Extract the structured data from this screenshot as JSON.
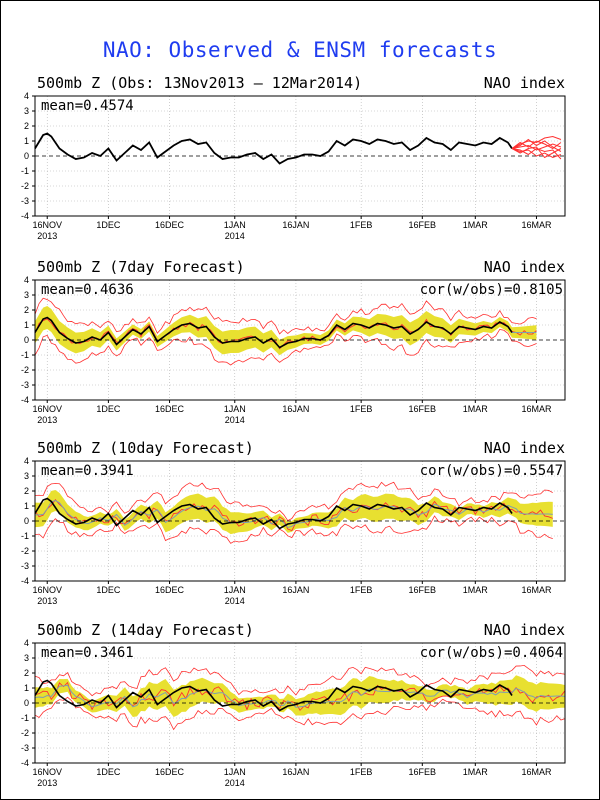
{
  "title": "NAO: Observed & ENSM forecasts",
  "colors": {
    "title": "#1f3cf0",
    "observed": "#000000",
    "ensemble": "#ff3030",
    "spread": "#e8e030",
    "mean_line": "#7f9fb0",
    "grid": "#b0b0b0"
  },
  "chart_data": [
    {
      "type": "line",
      "title_left": "500mb Z (Obs: 13Nov2013 – 12Mar2014)",
      "title_right": "NAO index",
      "mean_label": "mean=0.4574",
      "cor_label": "",
      "ylim": [
        -4,
        4
      ],
      "yticks": [
        "4",
        "3",
        "2",
        "1",
        "0",
        "-1",
        "-2",
        "-3",
        "-4"
      ],
      "xlim": [
        0,
        130
      ],
      "xticks": [
        {
          "day": 3,
          "label": "16NOV",
          "year": "2013"
        },
        {
          "day": 18,
          "label": "1DEC",
          "year": ""
        },
        {
          "day": 33,
          "label": "16DEC",
          "year": ""
        },
        {
          "day": 49,
          "label": "1JAN",
          "year": "2014"
        },
        {
          "day": 64,
          "label": "16JAN",
          "year": ""
        },
        {
          "day": 80,
          "label": "1FEB",
          "year": ""
        },
        {
          "day": 95,
          "label": "16FEB",
          "year": ""
        },
        {
          "day": 108,
          "label": "1MAR",
          "year": ""
        },
        {
          "day": 123,
          "label": "16MAR",
          "year": ""
        }
      ],
      "observed": {
        "x": [
          0,
          2,
          3,
          4,
          6,
          8,
          10,
          12,
          14,
          16,
          18,
          20,
          22,
          24,
          26,
          28,
          30,
          32,
          34,
          36,
          38,
          40,
          42,
          44,
          46,
          48,
          50,
          52,
          54,
          56,
          58,
          60,
          62,
          64,
          66,
          68,
          70,
          72,
          74,
          76,
          78,
          80,
          82,
          84,
          86,
          88,
          90,
          92,
          94,
          96,
          98,
          100,
          102,
          104,
          106,
          108,
          110,
          112,
          114,
          116,
          117
        ],
        "y": [
          0.5,
          1.4,
          1.5,
          1.3,
          0.5,
          0.1,
          -0.2,
          -0.1,
          0.2,
          0.0,
          0.5,
          -0.3,
          0.2,
          0.7,
          0.4,
          0.9,
          -0.1,
          0.3,
          0.7,
          1.0,
          1.1,
          0.8,
          0.9,
          0.2,
          -0.2,
          -0.1,
          -0.1,
          0.1,
          0.2,
          -0.2,
          0.1,
          -0.5,
          -0.2,
          -0.1,
          0.1,
          0.1,
          0.0,
          0.3,
          1.0,
          0.7,
          1.1,
          1.0,
          0.8,
          1.1,
          1.0,
          0.8,
          0.9,
          0.4,
          0.7,
          1.2,
          0.9,
          0.8,
          0.4,
          0.9,
          0.8,
          0.7,
          0.9,
          0.8,
          1.2,
          0.9,
          0.5
        ]
      },
      "ensemble_x": [
        117,
        119,
        121,
        123,
        125,
        127,
        129
      ],
      "ensemble": [
        [
          0.5,
          0.8,
          1.0,
          0.9,
          1.2,
          1.3,
          1.1
        ],
        [
          0.5,
          0.6,
          0.7,
          0.4,
          0.6,
          0.8,
          0.6
        ],
        [
          0.5,
          0.3,
          0.4,
          0.0,
          0.2,
          -0.1,
          0.1
        ],
        [
          0.5,
          0.9,
          0.6,
          1.0,
          0.8,
          0.5,
          0.9
        ],
        [
          0.5,
          0.4,
          0.1,
          0.5,
          0.3,
          0.4,
          -0.2
        ],
        [
          0.5,
          0.7,
          1.1,
          0.7,
          1.0,
          0.6,
          0.3
        ],
        [
          0.5,
          0.2,
          0.5,
          0.6,
          -0.1,
          0.2,
          0.5
        ]
      ]
    },
    {
      "type": "line",
      "title_left": "500mb Z (7day Forecast)",
      "title_right": "NAO index",
      "mean_label": "mean=0.4636",
      "cor_label": "cor(w/obs)=0.8105",
      "ylim": [
        -4,
        4
      ],
      "yticks": [
        "4",
        "3",
        "2",
        "1",
        "0",
        "-1",
        "-2",
        "-3",
        "-4"
      ],
      "xlim": [
        0,
        130
      ],
      "xticks": [
        {
          "day": 3,
          "label": "16NOV",
          "year": "2013"
        },
        {
          "day": 18,
          "label": "1DEC",
          "year": ""
        },
        {
          "day": 33,
          "label": "16DEC",
          "year": ""
        },
        {
          "day": 49,
          "label": "1JAN",
          "year": "2014"
        },
        {
          "day": 64,
          "label": "16JAN",
          "year": ""
        },
        {
          "day": 80,
          "label": "1FEB",
          "year": ""
        },
        {
          "day": 95,
          "label": "16FEB",
          "year": ""
        },
        {
          "day": 108,
          "label": "1MAR",
          "year": ""
        },
        {
          "day": 123,
          "label": "16MAR",
          "year": ""
        }
      ],
      "spread": 0.55,
      "lead": 0,
      "forecast_end": 123
    },
    {
      "type": "line",
      "title_left": "500mb Z (10day Forecast)",
      "title_right": "NAO index",
      "mean_label": "mean=0.3941",
      "cor_label": "cor(w/obs)=0.5547",
      "ylim": [
        -4,
        4
      ],
      "yticks": [
        "4",
        "3",
        "2",
        "1",
        "0",
        "-1",
        "-2",
        "-3",
        "-4"
      ],
      "xlim": [
        0,
        130
      ],
      "xticks": [
        {
          "day": 3,
          "label": "16NOV",
          "year": "2013"
        },
        {
          "day": 18,
          "label": "1DEC",
          "year": ""
        },
        {
          "day": 33,
          "label": "16DEC",
          "year": ""
        },
        {
          "day": 49,
          "label": "1JAN",
          "year": "2014"
        },
        {
          "day": 64,
          "label": "16JAN",
          "year": ""
        },
        {
          "day": 80,
          "label": "1FEB",
          "year": ""
        },
        {
          "day": 95,
          "label": "16FEB",
          "year": ""
        },
        {
          "day": 108,
          "label": "1MAR",
          "year": ""
        },
        {
          "day": 123,
          "label": "16MAR",
          "year": ""
        }
      ],
      "spread": 0.6,
      "lead": 0.35,
      "forecast_end": 127
    },
    {
      "type": "line",
      "title_left": "500mb Z (14day Forecast)",
      "title_right": "NAO index",
      "mean_label": "mean=0.3461",
      "cor_label": "cor(w/obs)=0.4064",
      "ylim": [
        -4,
        4
      ],
      "yticks": [
        "4",
        "3",
        "2",
        "1",
        "0",
        "-1",
        "-2",
        "-3",
        "-4"
      ],
      "xlim": [
        0,
        130
      ],
      "xticks": [
        {
          "day": 3,
          "label": "16NOV",
          "year": "2013"
        },
        {
          "day": 18,
          "label": "1DEC",
          "year": ""
        },
        {
          "day": 33,
          "label": "16DEC",
          "year": ""
        },
        {
          "day": 49,
          "label": "1JAN",
          "year": "2014"
        },
        {
          "day": 64,
          "label": "16JAN",
          "year": ""
        },
        {
          "day": 80,
          "label": "1FEB",
          "year": ""
        },
        {
          "day": 95,
          "label": "16FEB",
          "year": ""
        },
        {
          "day": 108,
          "label": "1MAR",
          "year": ""
        },
        {
          "day": 123,
          "label": "16MAR",
          "year": ""
        }
      ],
      "spread": 0.65,
      "lead": 0.7,
      "forecast_end": 130
    }
  ]
}
